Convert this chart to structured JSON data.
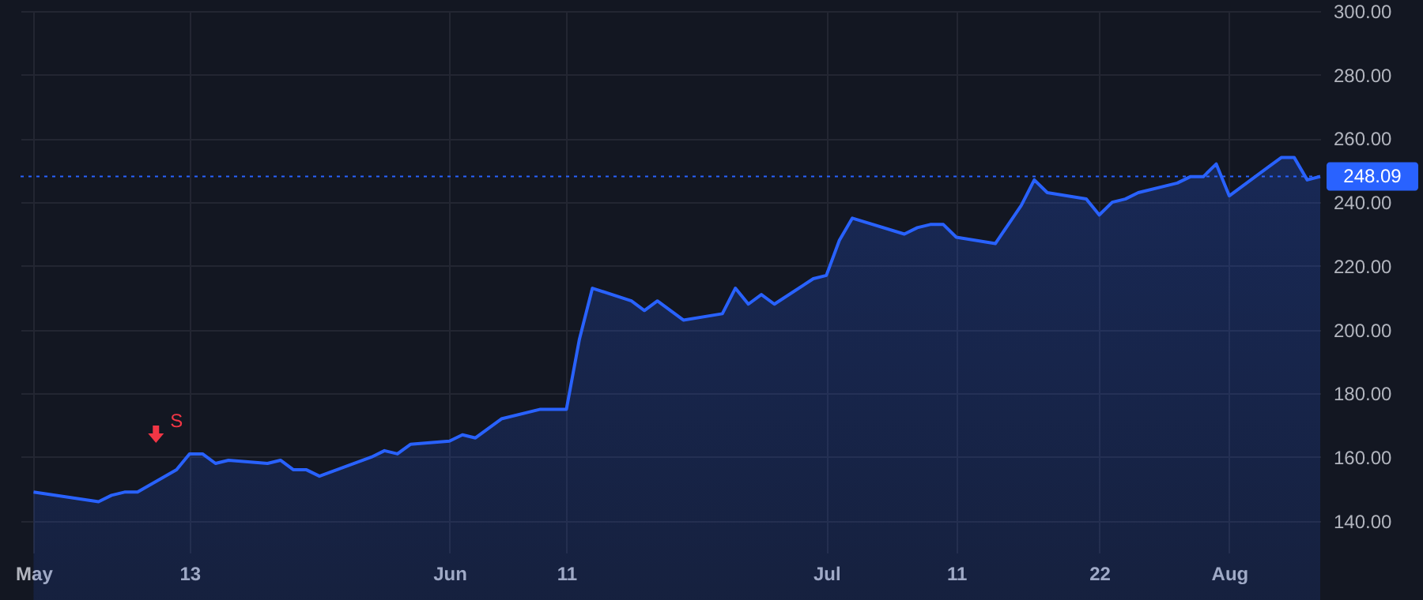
{
  "chart_data": {
    "type": "area",
    "x": [
      "--05-01",
      "--05-06",
      "--05-07",
      "--05-08",
      "--05-09",
      "--05-12",
      "--05-13",
      "--05-14",
      "--05-15",
      "--05-16",
      "--05-19",
      "--05-20",
      "--05-21",
      "--05-22",
      "--05-23",
      "--05-27",
      "--05-28",
      "--05-29",
      "--05-30",
      "--06-02",
      "--06-03",
      "--06-04",
      "--06-05",
      "--06-06",
      "--06-09",
      "--06-10",
      "--06-11",
      "--06-12",
      "--06-13",
      "--06-16",
      "--06-17",
      "--06-18",
      "--06-20",
      "--06-23",
      "--06-24",
      "--06-25",
      "--06-26",
      "--06-27",
      "--06-30",
      "--07-01",
      "--07-02",
      "--07-03",
      "--07-07",
      "--07-08",
      "--07-09",
      "--07-10",
      "--07-11",
      "--07-14",
      "--07-15",
      "--07-16",
      "--07-17",
      "--07-18",
      "--07-21",
      "--07-22",
      "--07-23",
      "--07-24",
      "--07-25",
      "--07-28",
      "--07-29",
      "--07-30",
      "--07-31",
      "--08-01",
      "--08-04",
      "--08-05",
      "--08-06",
      "--08-07",
      "--08-08"
    ],
    "series": [
      {
        "color": "#2962ff",
        "values": [
          149,
          146,
          148,
          149,
          149,
          156,
          161,
          161,
          158,
          159,
          158,
          159,
          156,
          156,
          154,
          160,
          162,
          161,
          164,
          165,
          167,
          166,
          169,
          172,
          175,
          175,
          175,
          197,
          213,
          209,
          206,
          209,
          203,
          205,
          213,
          208,
          211,
          208,
          216,
          217,
          228,
          235,
          230,
          232,
          233,
          233,
          229,
          227,
          233,
          239,
          247,
          243,
          241,
          236,
          240,
          241,
          243,
          246,
          248,
          248,
          252,
          242,
          251,
          254,
          254,
          247,
          248.09
        ]
      }
    ],
    "xlim": [
      "--04-30",
      "--08-08"
    ],
    "xticks": [
      {
        "value": "--05-01",
        "label": "May"
      },
      {
        "value": "--05-13",
        "label": "13"
      },
      {
        "value": "--06-02",
        "label": "Jun"
      },
      {
        "value": "--06-11",
        "label": "11"
      },
      {
        "value": "--07-01",
        "label": "Jul"
      },
      {
        "value": "--07-11",
        "label": "11"
      },
      {
        "value": "--07-22",
        "label": "22"
      },
      {
        "value": "--08-01",
        "label": "Aug"
      }
    ],
    "ylim": [
      130,
      300
    ],
    "yticks": [
      {
        "value": 140,
        "label": "140.00"
      },
      {
        "value": 160,
        "label": "160.00"
      },
      {
        "value": 180,
        "label": "180.00"
      },
      {
        "value": 200,
        "label": "200.00"
      },
      {
        "value": 220,
        "label": "220.00"
      },
      {
        "value": 240,
        "label": "240.00"
      },
      {
        "value": 260,
        "label": "260.00"
      },
      {
        "value": 280,
        "label": "280.00"
      },
      {
        "value": 300,
        "label": "300.00"
      }
    ],
    "ref_lines": [
      {
        "axis": "y",
        "value": 248.09,
        "label": "248.09",
        "color": "#2962ff",
        "line_style": "dotted"
      }
    ],
    "annotations": [
      {
        "text": "S",
        "x": "--05-12",
        "y": 156
      }
    ],
    "grid": true
  }
}
